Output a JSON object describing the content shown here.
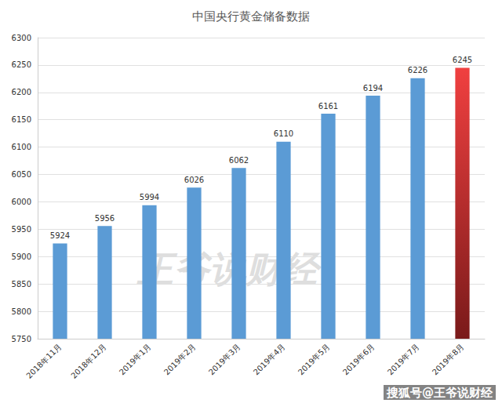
{
  "chart_data": {
    "type": "bar",
    "title": "中国央行黄金储备数据",
    "categories": [
      "2018年11月",
      "2018年12月",
      "2019年1月",
      "2019年2月",
      "2019年3月",
      "2019年4月",
      "2019年5月",
      "2019年6月",
      "2019年7月",
      "2019年8月"
    ],
    "values": [
      5924,
      5956,
      5994,
      6026,
      6062,
      6110,
      6161,
      6194,
      6226,
      6245
    ],
    "colors": [
      "#5b9bd5",
      "#5b9bd5",
      "#5b9bd5",
      "#5b9bd5",
      "#5b9bd5",
      "#5b9bd5",
      "#5b9bd5",
      "#5b9bd5",
      "#5b9bd5",
      "#f04040"
    ],
    "ylim": [
      5750,
      6300
    ],
    "yticks": [
      5750,
      5800,
      5850,
      5900,
      5950,
      6000,
      6050,
      6100,
      6150,
      6200,
      6250,
      6300
    ],
    "grid": true,
    "data_labels": true,
    "annotations": [
      "王爷说财经",
      "搜狐号@王爷说财经"
    ]
  }
}
